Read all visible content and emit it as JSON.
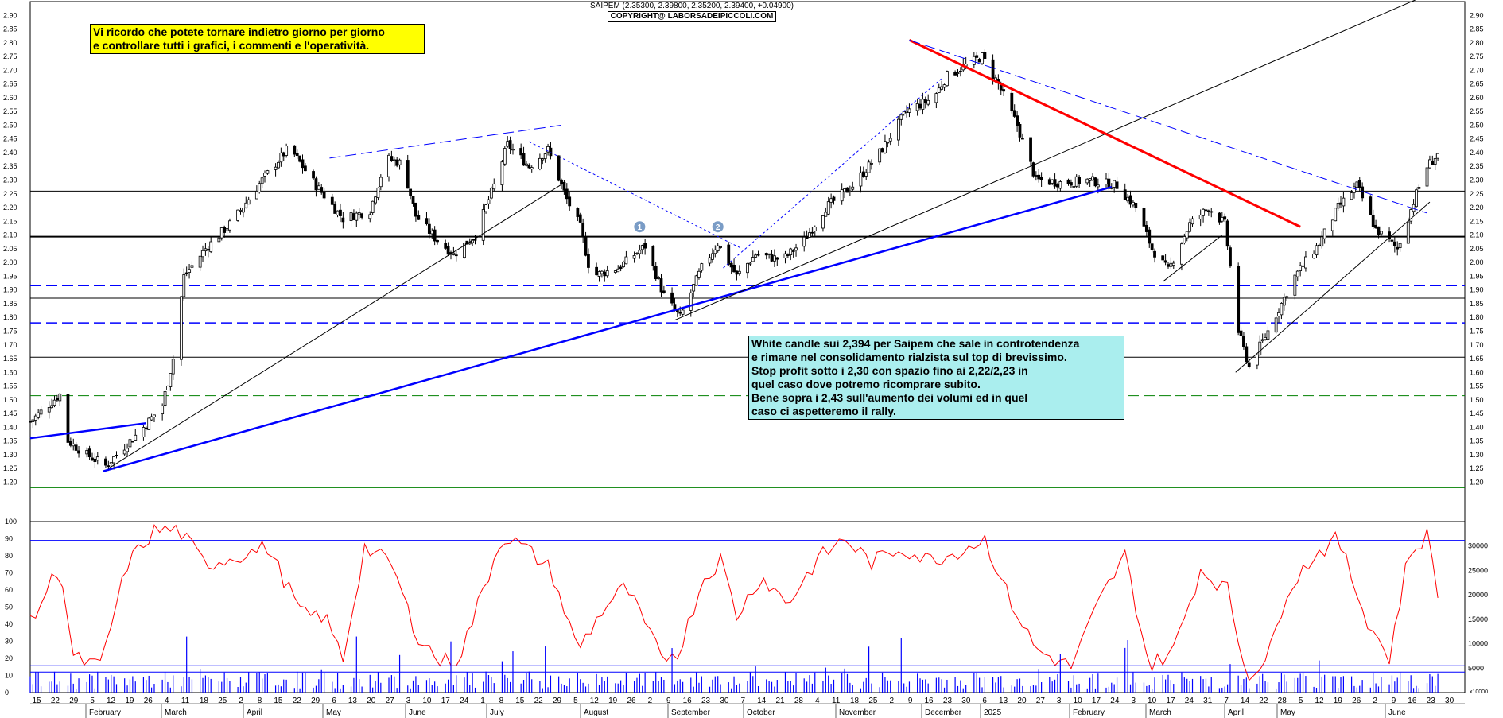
{
  "header": {
    "symbol_line": "SAIPEM (2.35300, 2.39800, 2.35200, 2.39400, +0.04900)",
    "copyright": "COPYRIGHT@ LABORSADEIPICCOLI.COM"
  },
  "notes": {
    "yellow": [
      "Vi ricordo che potete tornare indietro giorno per giorno",
      "e controllare tutti i grafici, i commenti e l'operatività."
    ],
    "cyan": [
      "White candle sui 2,394 per Saipem che sale in controtendenza",
      "e rimane nel consolidamento rialzista sul top di brevissimo.",
      "Stop profit sotto i 2,30 con spazio fino ai 2,22/2,23 in",
      "quel caso dove potremo ricomprare subito.",
      "Bene sopra i 2,43 sull'aumento dei volumi ed in quel",
      "caso ci aspetteremo il rally."
    ]
  },
  "markers": [
    "1",
    "2"
  ],
  "colors": {
    "candle": "#000000",
    "support_red": "#ff0000",
    "trend_blue": "#0000ff",
    "dashed_blue": "#0000ff",
    "green_level": "#008000",
    "oscillator": "#ff0000",
    "volume": "#0000ff",
    "marker_circle": "#7a9cc6"
  },
  "chart_data": [
    {
      "type": "candlestick",
      "ylim": [
        1.1,
        2.95
      ],
      "y_ticks": [
        "1.20",
        "1.25",
        "1.30",
        "1.35",
        "1.40",
        "1.45",
        "1.50",
        "1.55",
        "1.60",
        "1.65",
        "1.70",
        "1.75",
        "1.80",
        "1.85",
        "1.90",
        "1.95",
        "2.00",
        "2.05",
        "2.10",
        "2.15",
        "2.20",
        "2.25",
        "2.30",
        "2.35",
        "2.40",
        "2.45",
        "2.50",
        "2.55",
        "2.60",
        "2.65",
        "2.70",
        "2.75",
        "2.80",
        "2.85",
        "2.90"
      ],
      "x_day_labels": [
        "15",
        "22",
        "29",
        "5",
        "12",
        "19",
        "26",
        "4",
        "11",
        "18",
        "25",
        "2",
        "8",
        "15",
        "22",
        "29",
        "6",
        "13",
        "20",
        "27",
        "3",
        "10",
        "17",
        "24",
        "1",
        "8",
        "15",
        "22",
        "29",
        "5",
        "12",
        "19",
        "26",
        "2",
        "9",
        "16",
        "23",
        "30",
        "7",
        "14",
        "21",
        "28",
        "4",
        "11",
        "18",
        "25",
        "2",
        "9",
        "16",
        "23",
        "30",
        "6",
        "13",
        "20",
        "27",
        "3",
        "10",
        "17",
        "24",
        "3",
        "10",
        "17",
        "24",
        "31",
        "7",
        "14",
        "22",
        "28",
        "5",
        "12",
        "19",
        "26",
        "2",
        "9",
        "16",
        "23",
        "30"
      ],
      "x_month_labels": [
        "February",
        "March",
        "April",
        "May",
        "June",
        "July",
        "August",
        "September",
        "October",
        "November",
        "December",
        "2025",
        "February",
        "March",
        "April",
        "May",
        "June"
      ],
      "x_range": [
        "2024-01-15",
        "2025-06-30"
      ],
      "horizontal_levels": [
        {
          "value": 2.094,
          "style": "solid",
          "color": "black",
          "width": 2
        },
        {
          "value": 2.26,
          "style": "solid",
          "color": "black",
          "width": 1
        },
        {
          "value": 1.915,
          "style": "dashed",
          "color": "blue",
          "width": 1
        },
        {
          "value": 1.87,
          "style": "solid",
          "color": "black",
          "width": 1
        },
        {
          "value": 1.78,
          "style": "dashed",
          "color": "blue",
          "width": 1.5
        },
        {
          "value": 1.655,
          "style": "solid",
          "color": "black",
          "width": 1
        },
        {
          "value": 1.515,
          "style": "dashed",
          "color": "green",
          "width": 1
        },
        {
          "value": 1.18,
          "style": "solid",
          "color": "green",
          "width": 1
        }
      ],
      "trendlines": [
        {
          "from": [
            "2024-02-11",
            1.24
          ],
          "to": [
            "2025-02-19",
            2.275
          ],
          "color": "blue",
          "style": "solid"
        },
        {
          "from": [
            "2024-01-15",
            1.36
          ],
          "to": [
            "2024-02-27",
            1.415
          ],
          "color": "blue",
          "style": "solid"
        },
        {
          "from": [
            "2024-02-13",
            1.25
          ],
          "to": [
            "2024-07-31",
            2.29
          ],
          "color": "black",
          "style": "solid"
        },
        {
          "from": [
            "2024-09-10",
            1.79
          ],
          "to": [
            "2025-06-22",
            3.0
          ],
          "color": "black",
          "style": "solid"
        },
        {
          "from": [
            "2025-03-10",
            1.93
          ],
          "to": [
            "2025-04-01",
            2.1
          ],
          "color": "black",
          "style": "solid"
        },
        {
          "from": [
            "2025-04-06",
            1.6
          ],
          "to": [
            "2025-06-17",
            2.22
          ],
          "color": "black",
          "style": "solid"
        },
        {
          "from": [
            "2024-12-06",
            2.81
          ],
          "to": [
            "2025-04-30",
            2.13
          ],
          "color": "red",
          "style": "solid"
        },
        {
          "from": [
            "2024-12-06",
            2.81
          ],
          "to": [
            "2025-06-16",
            2.18
          ],
          "color": "blue",
          "style": "dashed"
        },
        {
          "from": [
            "2024-05-05",
            2.38
          ],
          "to": [
            "2024-07-30",
            2.5
          ],
          "color": "blue",
          "style": "dashed"
        },
        {
          "from": [
            "2024-07-18",
            2.44
          ],
          "to": [
            "2024-10-05",
            2.05
          ],
          "color": "blue",
          "style": "dotted"
        },
        {
          "from": [
            "2024-09-28",
            1.98
          ],
          "to": [
            "2024-12-18",
            2.67
          ],
          "color": "blue",
          "style": "dotted"
        }
      ],
      "price_path": [
        [
          "2024-01-15",
          1.42
        ],
        [
          "2024-01-26",
          1.52
        ],
        [
          "2024-01-29",
          1.35
        ],
        [
          "2024-02-05",
          1.3
        ],
        [
          "2024-02-12",
          1.26
        ],
        [
          "2024-02-19",
          1.33
        ],
        [
          "2024-02-26",
          1.4
        ],
        [
          "2024-03-04",
          1.48
        ],
        [
          "2024-03-08",
          1.65
        ],
        [
          "2024-03-12",
          1.95
        ],
        [
          "2024-03-20",
          2.05
        ],
        [
          "2024-03-30",
          2.15
        ],
        [
          "2024-04-10",
          2.3
        ],
        [
          "2024-04-20",
          2.42
        ],
        [
          "2024-04-30",
          2.28
        ],
        [
          "2024-05-10",
          2.16
        ],
        [
          "2024-05-20",
          2.19
        ],
        [
          "2024-05-26",
          2.38
        ],
        [
          "2024-06-01",
          2.36
        ],
        [
          "2024-06-06",
          2.17
        ],
        [
          "2024-06-13",
          2.09
        ],
        [
          "2024-06-20",
          2.03
        ],
        [
          "2024-06-28",
          2.1
        ],
        [
          "2024-07-05",
          2.28
        ],
        [
          "2024-07-10",
          2.43
        ],
        [
          "2024-07-18",
          2.35
        ],
        [
          "2024-07-25",
          2.41
        ],
        [
          "2024-08-01",
          2.23
        ],
        [
          "2024-08-06",
          2.13
        ],
        [
          "2024-08-10",
          1.95
        ],
        [
          "2024-08-20",
          1.98
        ],
        [
          "2024-08-30",
          2.06
        ],
        [
          "2024-09-06",
          1.88
        ],
        [
          "2024-09-12",
          1.8
        ],
        [
          "2024-09-20",
          1.98
        ],
        [
          "2024-09-26",
          2.07
        ],
        [
          "2024-10-03",
          1.95
        ],
        [
          "2024-10-10",
          2.03
        ],
        [
          "2024-10-20",
          2.01
        ],
        [
          "2024-10-28",
          2.08
        ],
        [
          "2024-11-05",
          2.2
        ],
        [
          "2024-11-15",
          2.28
        ],
        [
          "2024-11-25",
          2.4
        ],
        [
          "2024-12-05",
          2.55
        ],
        [
          "2024-12-15",
          2.6
        ],
        [
          "2024-12-20",
          2.68
        ],
        [
          "2025-01-02",
          2.75
        ],
        [
          "2025-01-08",
          2.65
        ],
        [
          "2025-01-15",
          2.5
        ],
        [
          "2025-01-22",
          2.3
        ],
        [
          "2025-02-01",
          2.29
        ],
        [
          "2025-02-10",
          2.3
        ],
        [
          "2025-02-21",
          2.28
        ],
        [
          "2025-02-28",
          2.2
        ],
        [
          "2025-03-06",
          2.05
        ],
        [
          "2025-03-12",
          1.97
        ],
        [
          "2025-03-20",
          2.14
        ],
        [
          "2025-03-27",
          2.2
        ],
        [
          "2025-04-02",
          2.14
        ],
        [
          "2025-04-07",
          1.75
        ],
        [
          "2025-04-11",
          1.62
        ],
        [
          "2025-04-18",
          1.75
        ],
        [
          "2025-04-28",
          1.95
        ],
        [
          "2025-05-07",
          2.07
        ],
        [
          "2025-05-14",
          2.2
        ],
        [
          "2025-05-21",
          2.28
        ],
        [
          "2025-05-28",
          2.12
        ],
        [
          "2025-06-05",
          2.05
        ],
        [
          "2025-06-12",
          2.25
        ],
        [
          "2025-06-16",
          2.35
        ],
        [
          "2025-06-20",
          2.394
        ]
      ]
    },
    {
      "type": "line",
      "name": "",
      "ylim": [
        0,
        100
      ],
      "y_ticks": [
        "0",
        "10",
        "20",
        "30",
        "40",
        "50",
        "60",
        "70",
        "80",
        "90",
        "100"
      ],
      "levels": [
        89,
        12
      ],
      "path": [
        [
          "2024-01-15",
          40
        ],
        [
          "2024-01-26",
          75
        ],
        [
          "2024-01-31",
          20
        ],
        [
          "2024-02-10",
          15
        ],
        [
          "2024-02-20",
          75
        ],
        [
          "2024-03-01",
          95
        ],
        [
          "2024-03-10",
          95
        ],
        [
          "2024-03-20",
          75
        ],
        [
          "2024-04-01",
          80
        ],
        [
          "2024-04-12",
          85
        ],
        [
          "2024-04-25",
          45
        ],
        [
          "2024-05-03",
          45
        ],
        [
          "2024-05-10",
          20
        ],
        [
          "2024-05-18",
          85
        ],
        [
          "2024-05-28",
          75
        ],
        [
          "2024-06-06",
          35
        ],
        [
          "2024-06-15",
          18
        ],
        [
          "2024-06-22",
          20
        ],
        [
          "2024-07-01",
          60
        ],
        [
          "2024-07-08",
          92
        ],
        [
          "2024-07-16",
          85
        ],
        [
          "2024-07-26",
          72
        ],
        [
          "2024-08-05",
          25
        ],
        [
          "2024-08-15",
          50
        ],
        [
          "2024-08-23",
          62
        ],
        [
          "2024-09-05",
          20
        ],
        [
          "2024-09-12",
          25
        ],
        [
          "2024-09-20",
          65
        ],
        [
          "2024-09-27",
          78
        ],
        [
          "2024-10-03",
          45
        ],
        [
          "2024-10-12",
          68
        ],
        [
          "2024-10-22",
          52
        ],
        [
          "2024-11-02",
          78
        ],
        [
          "2024-11-12",
          90
        ],
        [
          "2024-11-22",
          76
        ],
        [
          "2024-12-03",
          85
        ],
        [
          "2024-12-12",
          78
        ],
        [
          "2024-12-20",
          80
        ],
        [
          "2025-01-03",
          90
        ],
        [
          "2025-01-12",
          55
        ],
        [
          "2025-01-22",
          25
        ],
        [
          "2025-02-04",
          15
        ],
        [
          "2025-02-15",
          55
        ],
        [
          "2025-02-24",
          80
        ],
        [
          "2025-03-05",
          15
        ],
        [
          "2025-03-14",
          25
        ],
        [
          "2025-03-24",
          72
        ],
        [
          "2025-04-03",
          60
        ],
        [
          "2025-04-10",
          10
        ],
        [
          "2025-04-18",
          20
        ],
        [
          "2025-04-25",
          60
        ],
        [
          "2025-05-05",
          80
        ],
        [
          "2025-05-14",
          90
        ],
        [
          "2025-05-24",
          45
        ],
        [
          "2025-06-02",
          20
        ],
        [
          "2025-06-09",
          80
        ],
        [
          "2025-06-16",
          92
        ],
        [
          "2025-06-20",
          60
        ]
      ]
    },
    {
      "type": "bar",
      "name": "volume",
      "ylim": [
        0,
        35000
      ],
      "y_ticks": [
        "5000",
        "10000",
        "15000",
        "20000",
        "25000",
        "30000"
      ],
      "axis_note": "x10000",
      "base_level": 5500
    }
  ]
}
